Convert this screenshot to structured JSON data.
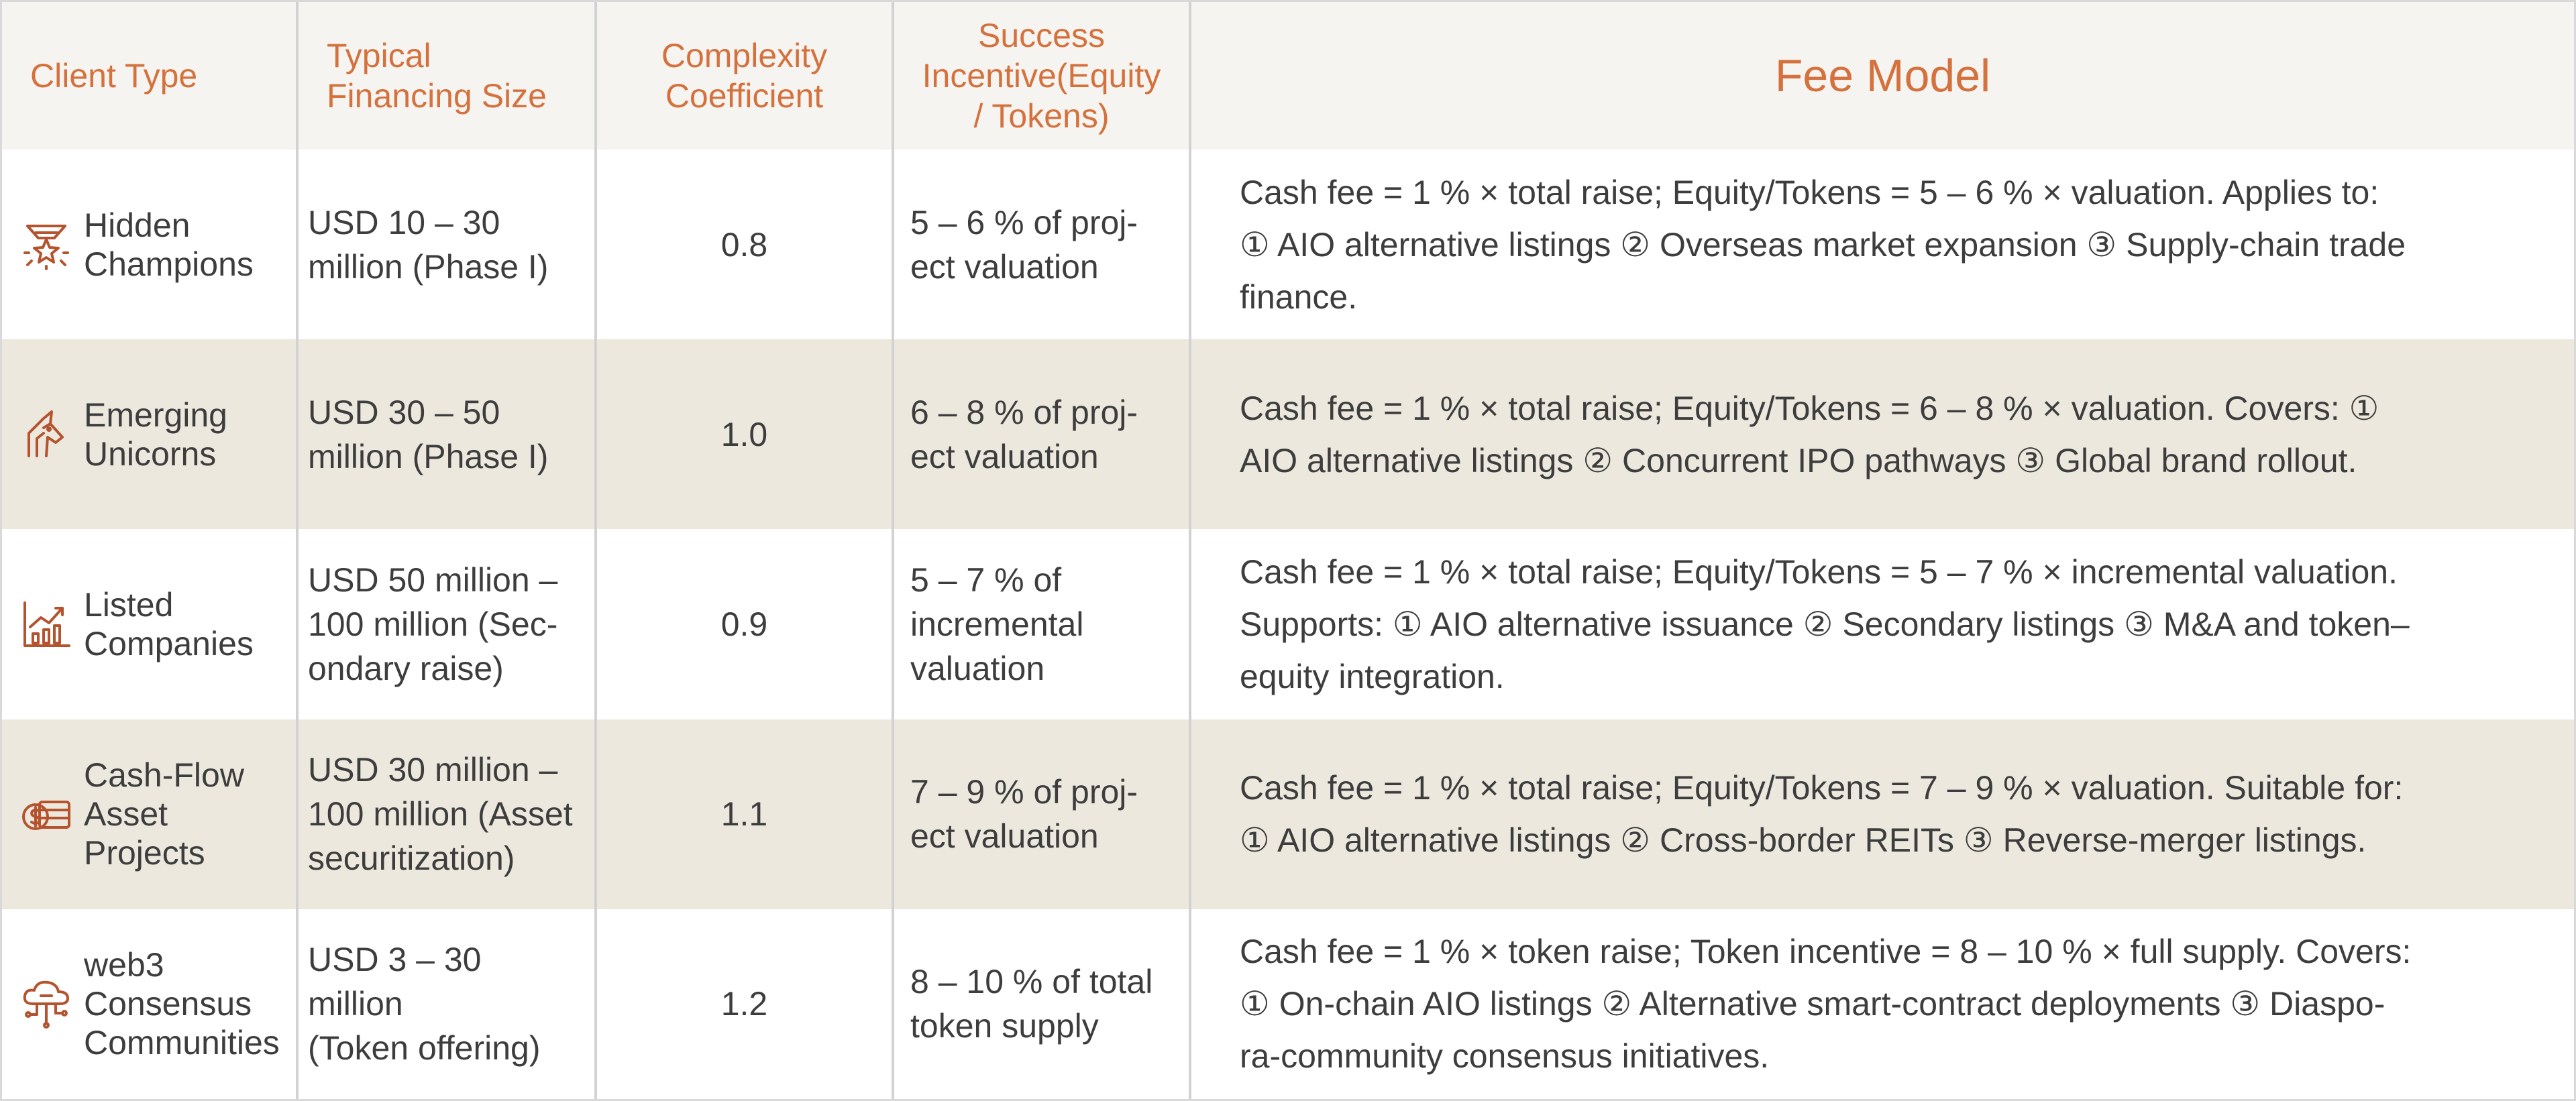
{
  "header": {
    "client_type": "Client Type",
    "financing_size": "Typical\nFinancing Size",
    "complexity": "Complexity\nCoefficient",
    "incentive": "Success\nIncentive(Equity\n/ Tokens)",
    "fee_model": "Fee Model"
  },
  "rows": [
    {
      "icon": "trophy-star-icon",
      "client_type": "Hidden\nChampions",
      "size": "USD 10 – 30\nmillion (Phase I)",
      "coefficient": "0.8",
      "incentive": "5 – 6 % of proj-\nect valuation",
      "fee": "Cash fee = 1 % × total raise; Equity/Tokens = 5 – 6 % × valuation. Applies to:\n① AIO alternative listings ② Overseas market expansion ③ Supply-chain trade\nfinance."
    },
    {
      "icon": "unicorn-icon",
      "client_type": "Emerging\nUnicorns",
      "size": "USD 30 – 50\nmillion (Phase I)",
      "coefficient": "1.0",
      "incentive": "6 – 8 % of proj-\nect valuation",
      "fee": "Cash fee = 1 % × total raise; Equity/Tokens = 6 – 8 % × valuation. Covers: ①\nAIO alternative listings ② Concurrent IPO pathways ③ Global brand rollout."
    },
    {
      "icon": "growth-chart-icon",
      "client_type": "Listed\nCompanies",
      "size": "USD 50 million –\n100 million (Sec-\nondary raise)",
      "coefficient": "0.9",
      "incentive": "5 – 7 % of\nincremental\nvaluation",
      "fee": "Cash fee = 1 % × total raise; Equity/Tokens = 5 – 7 % × incremental valuation.\nSupports: ① AIO alternative issuance ② Secondary listings ③ M&A and token–\nequity integration."
    },
    {
      "icon": "cash-flow-icon",
      "client_type": "Cash-Flow\nAsset\nProjects",
      "size": "USD 30 million –\n100 million (Asset\nsecuritization)",
      "coefficient": "1.1",
      "incentive": "7 – 9 % of proj-\nect valuation",
      "fee": "Cash fee = 1 % × total raise; Equity/Tokens = 7 – 9 % × valuation. Suitable for:\n① AIO alternative listings ② Cross-border REITs ③ Reverse-merger listings."
    },
    {
      "icon": "cloud-network-icon",
      "client_type": "web3\nConsensus\nCommunities",
      "size": "USD 3 – 30\nmillion\n(Token offering)",
      "coefficient": "1.2",
      "incentive": "8 – 10 % of total\ntoken supply",
      "fee": "Cash fee = 1 % × token raise; Token incentive = 8 – 10 % × full supply. Covers:\n① On-chain AIO listings ② Alternative smart-contract deployments ③ Diaspo-\nra-community consensus initiatives."
    }
  ],
  "colors": {
    "header_text": "#d4713d",
    "header_bg": "#f6f4f0",
    "shade": "#ece8de",
    "icon": "#b4532d"
  }
}
